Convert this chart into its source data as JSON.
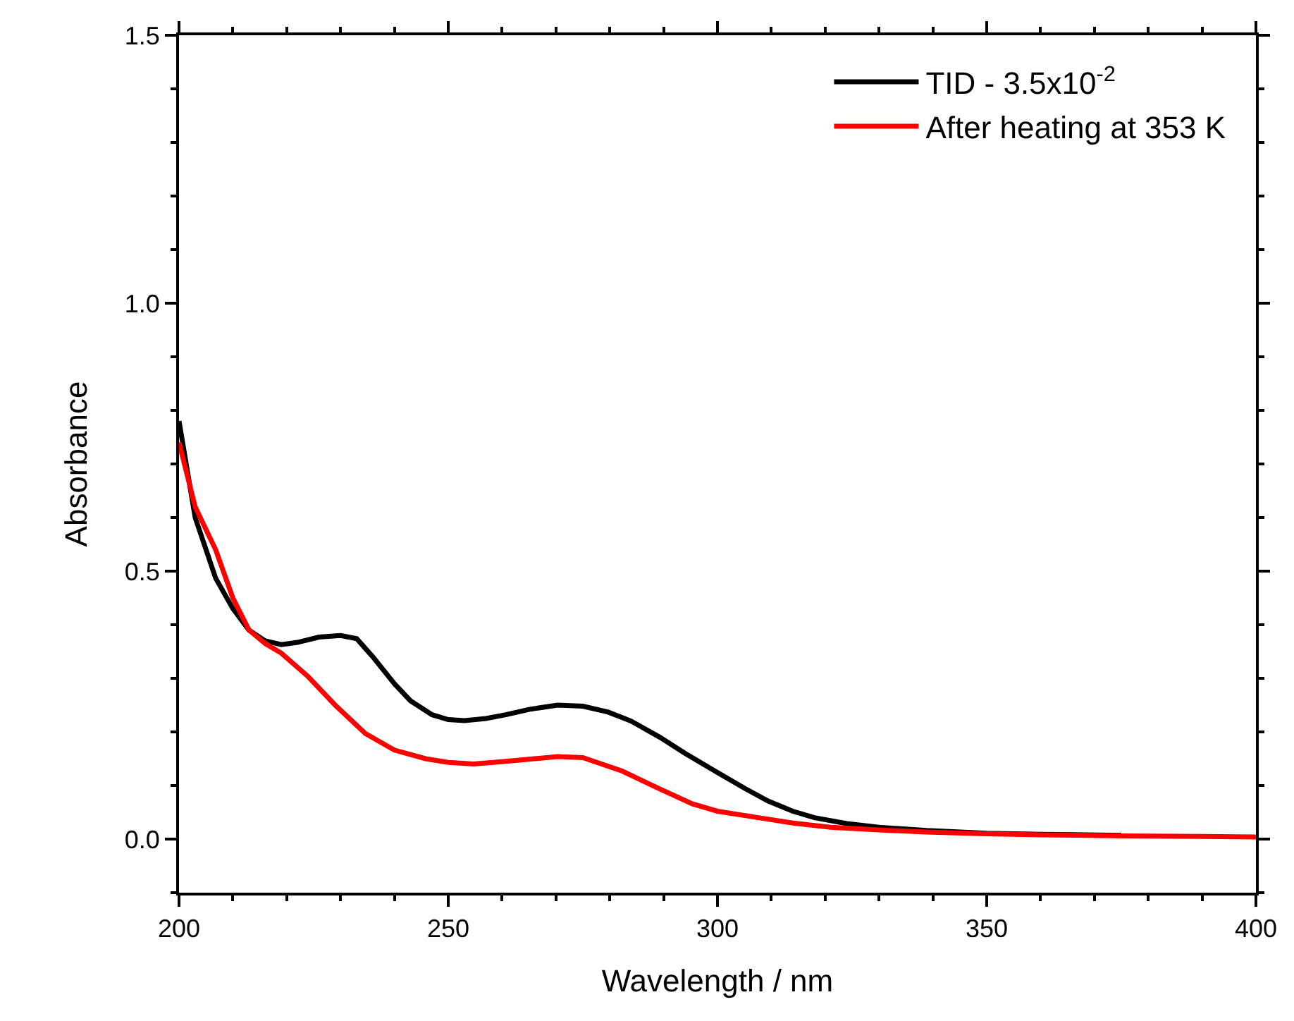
{
  "chart_data": {
    "type": "line",
    "xlabel": "Wavelength / nm",
    "ylabel": "Absorbance",
    "xlim": [
      200,
      400
    ],
    "xticks": [
      200,
      250,
      300,
      350,
      400
    ],
    "ylim": [
      -0.1,
      1.5
    ],
    "yticks": [
      {
        "value": 0,
        "label": "0.0"
      },
      0.5,
      {
        "value": 1,
        "label": "1.0"
      },
      1.5
    ],
    "grid": false,
    "legend": "top right",
    "marker": "none",
    "line_style": "solid",
    "series": [
      {
        "name": "TID - 3.5x10$^{-2}$",
        "color": "#000000",
        "x": [
          200,
          203,
          206.8,
          210,
          213,
          216,
          219,
          222,
          226,
          230,
          233,
          236,
          240,
          243,
          247,
          250,
          253,
          257,
          260.7,
          265,
          270.3,
          275,
          279.7,
          284,
          289.3,
          294,
          299.7,
          305,
          309.4,
          314,
          318,
          324,
          330,
          338.8,
          350,
          360,
          375
        ],
        "values": [
          0.78,
          0.6,
          0.487,
          0.43,
          0.39,
          0.37,
          0.363,
          0.367,
          0.377,
          0.38,
          0.374,
          0.34,
          0.29,
          0.258,
          0.232,
          0.223,
          0.221,
          0.225,
          0.232,
          0.242,
          0.25,
          0.248,
          0.237,
          0.22,
          0.19,
          0.16,
          0.126,
          0.095,
          0.071,
          0.052,
          0.04,
          0.029,
          0.022,
          0.016,
          0.011,
          0.009,
          0.007
        ]
      },
      {
        "name": "After heating at 353 K",
        "color": "#ff0000",
        "x": [
          200,
          203,
          206.8,
          210,
          213,
          216,
          219,
          224,
          229,
          234.6,
          240,
          245.8,
          250,
          254.7,
          260.7,
          266,
          270.3,
          275,
          282.3,
          289,
          295.3,
          300,
          307.6,
          314,
          321,
          330,
          338.8,
          350,
          360,
          375,
          390,
          400
        ],
        "values": [
          0.74,
          0.62,
          0.54,
          0.45,
          0.39,
          0.365,
          0.347,
          0.303,
          0.25,
          0.197,
          0.166,
          0.15,
          0.143,
          0.14,
          0.145,
          0.15,
          0.154,
          0.152,
          0.127,
          0.095,
          0.066,
          0.052,
          0.04,
          0.03,
          0.022,
          0.017,
          0.013,
          0.01,
          0.008,
          0.006,
          0.005,
          0.004
        ]
      }
    ]
  }
}
